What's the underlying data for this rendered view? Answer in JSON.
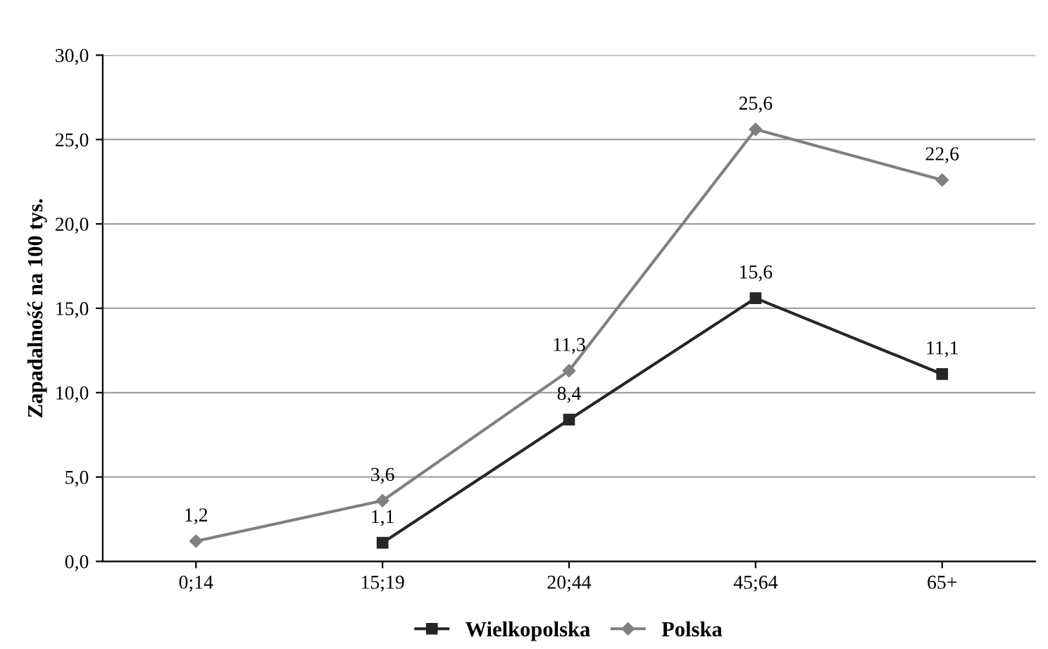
{
  "chart_data": {
    "type": "line",
    "ylabel": "Zapadalność na 100 tys.",
    "categories": [
      "0;14",
      "15;19",
      "20;44",
      "45;64",
      "65+"
    ],
    "series": [
      {
        "name": "Wielkopolska",
        "color": "#262626",
        "marker": "square",
        "values": [
          null,
          1.1,
          8.4,
          15.6,
          11.1
        ],
        "value_labels": [
          null,
          "1,1",
          "8,4",
          "15,6",
          "11,1"
        ]
      },
      {
        "name": "Polska",
        "color": "#808080",
        "marker": "diamond",
        "values": [
          1.2,
          3.6,
          11.3,
          25.6,
          22.6
        ],
        "value_labels": [
          "1,2",
          "3,6",
          "11,3",
          "25,6",
          "22,6"
        ]
      }
    ],
    "ylim": [
      0,
      30
    ],
    "yticks": [
      {
        "value": 0,
        "label": "0,0"
      },
      {
        "value": 5,
        "label": "5,0"
      },
      {
        "value": 10,
        "label": "10,0"
      },
      {
        "value": 15,
        "label": "15,0"
      },
      {
        "value": 20,
        "label": "20,0"
      },
      {
        "value": 25,
        "label": "25,0"
      },
      {
        "value": 30,
        "label": "30,0"
      }
    ],
    "grid": "y",
    "legend": "bottom"
  }
}
